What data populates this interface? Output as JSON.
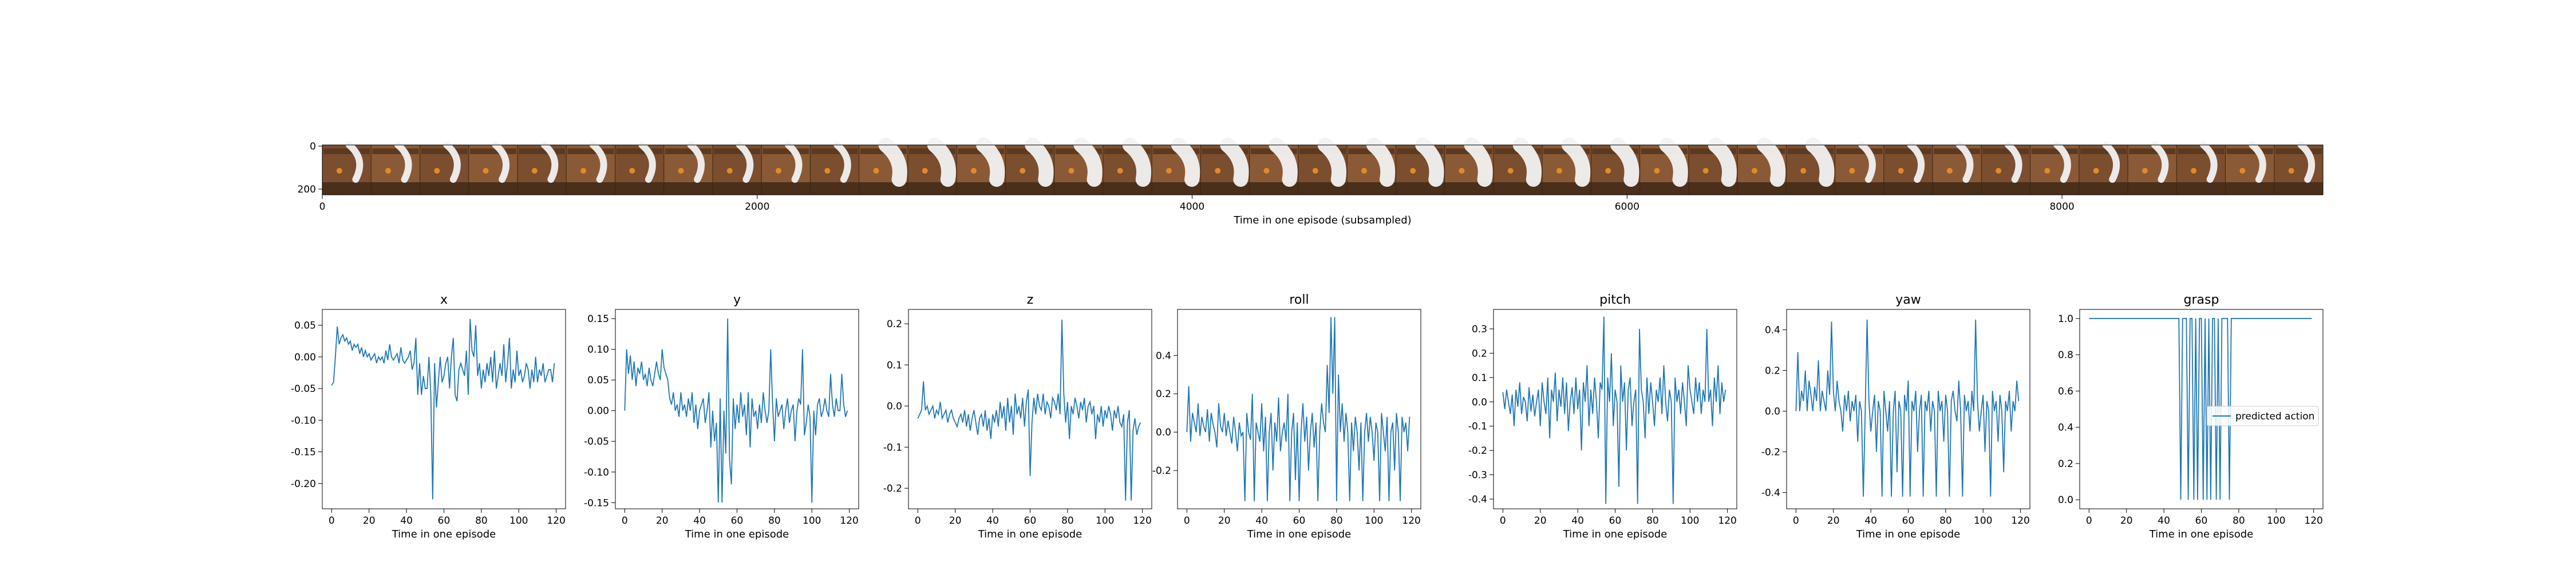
{
  "filmstrip": {
    "xlabel": "Time in one episode (subsampled)",
    "x_ticks": [
      0,
      2000,
      4000,
      6000,
      8000
    ],
    "y_ticks": [
      0,
      200
    ],
    "xlim": [
      0,
      9200
    ],
    "frame_count": 41
  },
  "chart_data": [
    {
      "type": "line",
      "title": "x",
      "xlabel": "Time in one episode",
      "xlim": [
        -5,
        125
      ],
      "ylim": [
        -0.24,
        0.075
      ],
      "x_ticks": [
        0,
        20,
        40,
        60,
        80,
        100,
        120
      ],
      "y_ticks": [
        0.05,
        0.0,
        -0.05,
        -0.1,
        -0.15,
        -0.2
      ],
      "y_tick_labels": [
        "0.05",
        "0.00",
        "-0.05",
        "-0.10",
        "-0.15",
        "-0.20"
      ],
      "color": "#1f77b4",
      "series": [
        {
          "values": [
            -0.045,
            -0.04,
            0.0,
            0.048,
            0.02,
            0.03,
            0.035,
            0.025,
            0.03,
            0.02,
            0.025,
            0.01,
            0.02,
            0.015,
            0.02,
            0.005,
            0.015,
            0.0,
            0.01,
            0.0,
            0.005,
            -0.005,
            0.0,
            0.005,
            -0.01,
            0.0,
            -0.005,
            0.0,
            -0.01,
            0.01,
            -0.005,
            0.02,
            0.0,
            -0.005,
            0.0,
            0.005,
            -0.01,
            0.015,
            -0.005,
            -0.01,
            -0.005,
            0.0,
            0.01,
            -0.02,
            -0.01,
            0.03,
            -0.06,
            -0.01,
            -0.06,
            -0.03,
            -0.05,
            -0.05,
            0.0,
            -0.06,
            -0.225,
            -0.01,
            -0.08,
            -0.04,
            0.0,
            -0.04,
            -0.03,
            -0.01,
            0.0,
            -0.05,
            0.0,
            0.03,
            -0.06,
            -0.07,
            -0.02,
            -0.01,
            -0.02,
            -0.03,
            0.01,
            -0.06,
            0.06,
            0.01,
            0.0,
            0.05,
            -0.03,
            -0.01,
            -0.05,
            -0.02,
            -0.04,
            -0.01,
            -0.03,
            0.0,
            -0.04,
            0.01,
            -0.05,
            -0.03,
            -0.01,
            -0.03,
            0.02,
            -0.04,
            -0.01,
            0.03,
            -0.05,
            -0.02,
            -0.04,
            0.01,
            -0.03,
            -0.02,
            -0.04,
            -0.03,
            -0.01,
            -0.02,
            -0.05,
            -0.02,
            -0.04,
            0.0,
            -0.04,
            -0.02,
            -0.03,
            -0.01,
            -0.04,
            -0.03,
            -0.02,
            -0.02,
            -0.04,
            -0.01
          ]
        }
      ]
    },
    {
      "type": "line",
      "title": "y",
      "xlabel": "Time in one episode",
      "xlim": [
        -5,
        125
      ],
      "ylim": [
        -0.16,
        0.165
      ],
      "x_ticks": [
        0,
        20,
        40,
        60,
        80,
        100,
        120
      ],
      "y_ticks": [
        0.15,
        0.1,
        0.05,
        0.0,
        -0.05,
        -0.1,
        -0.15
      ],
      "y_tick_labels": [
        "0.15",
        "0.10",
        "0.05",
        "0.00",
        "-0.05",
        "-0.10",
        "-0.15"
      ],
      "color": "#1f77b4",
      "series": [
        {
          "values": [
            0.0,
            0.1,
            0.06,
            0.09,
            0.05,
            0.08,
            0.04,
            0.07,
            0.06,
            0.08,
            0.05,
            0.06,
            0.04,
            0.07,
            0.05,
            0.04,
            0.06,
            0.08,
            0.06,
            0.05,
            0.1,
            0.07,
            0.06,
            0.05,
            0.02,
            0.01,
            0.03,
            0.0,
            0.01,
            -0.01,
            0.03,
            0.0,
            0.01,
            -0.01,
            0.02,
            0.0,
            0.03,
            -0.02,
            0.01,
            -0.03,
            0.0,
            0.01,
            0.02,
            -0.02,
            0.0,
            0.03,
            -0.06,
            0.0,
            -0.05,
            -0.02,
            -0.15,
            0.02,
            -0.15,
            0.0,
            -0.07,
            0.15,
            -0.08,
            -0.12,
            0.02,
            -0.03,
            0.01,
            -0.02,
            0.03,
            -0.01,
            0.01,
            -0.04,
            0.03,
            -0.06,
            0.02,
            -0.01,
            0.0,
            -0.03,
            0.01,
            -0.02,
            0.03,
            0.0,
            -0.02,
            0.0,
            0.1,
            0.01,
            -0.05,
            0.02,
            -0.01,
            0.0,
            0.01,
            -0.03,
            0.0,
            0.02,
            -0.02,
            0.0,
            0.01,
            -0.05,
            0.0,
            0.02,
            0.01,
            0.1,
            -0.04,
            -0.02,
            0.01,
            -0.01,
            -0.15,
            0.0,
            -0.04,
            0.01,
            0.02,
            -0.01,
            0.0,
            0.02,
            0.0,
            -0.01,
            0.06,
            0.01,
            -0.01,
            0.02,
            0.0,
            0.0,
            0.06,
            0.01,
            -0.01,
            0.0
          ]
        }
      ]
    },
    {
      "type": "line",
      "title": "z",
      "xlabel": "Time in one episode",
      "xlim": [
        -5,
        125
      ],
      "ylim": [
        -0.25,
        0.235
      ],
      "x_ticks": [
        0,
        20,
        40,
        60,
        80,
        100,
        120
      ],
      "y_ticks": [
        0.2,
        0.1,
        0.0,
        -0.1,
        -0.2
      ],
      "y_tick_labels": [
        "0.2",
        "0.1",
        "0.0",
        "-0.1",
        "-0.2"
      ],
      "color": "#1f77b4",
      "series": [
        {
          "values": [
            -0.03,
            -0.02,
            -0.01,
            0.06,
            -0.01,
            0.0,
            -0.02,
            -0.01,
            0.0,
            -0.03,
            -0.01,
            -0.02,
            0.01,
            -0.03,
            -0.02,
            -0.01,
            -0.04,
            -0.02,
            -0.01,
            -0.03,
            -0.04,
            -0.05,
            -0.03,
            -0.02,
            -0.04,
            -0.01,
            -0.05,
            -0.02,
            -0.06,
            -0.03,
            -0.01,
            -0.04,
            -0.07,
            -0.03,
            -0.02,
            -0.05,
            -0.01,
            -0.06,
            -0.03,
            -0.08,
            -0.02,
            -0.04,
            -0.01,
            -0.05,
            0.01,
            -0.03,
            0.0,
            -0.06,
            0.02,
            -0.04,
            0.0,
            -0.07,
            0.03,
            -0.02,
            0.0,
            -0.03,
            0.02,
            -0.05,
            0.01,
            0.04,
            -0.17,
            -0.04,
            0.02,
            -0.02,
            0.03,
            0.0,
            -0.01,
            0.03,
            -0.02,
            0.01,
            0.0,
            -0.03,
            0.02,
            0.01,
            -0.01,
            0.03,
            -0.02,
            0.21,
            0.03,
            -0.04,
            0.01,
            -0.08,
            0.0,
            -0.02,
            0.02,
            0.0,
            -0.03,
            0.01,
            -0.01,
            0.02,
            -0.04,
            0.0,
            0.01,
            -0.02,
            0.0,
            -0.08,
            -0.02,
            -0.04,
            0.0,
            -0.05,
            -0.01,
            -0.03,
            0.0,
            -0.02,
            -0.06,
            -0.01,
            -0.03,
            0.0,
            -0.04,
            -0.05,
            -0.02,
            -0.23,
            -0.04,
            -0.01,
            -0.23,
            -0.06,
            -0.03,
            -0.07,
            -0.05,
            -0.04
          ]
        }
      ]
    },
    {
      "type": "line",
      "title": "roll",
      "xlabel": "Time in one episode",
      "xlim": [
        -5,
        125
      ],
      "ylim": [
        -0.4,
        0.64
      ],
      "x_ticks": [
        0,
        20,
        40,
        60,
        80,
        100,
        120
      ],
      "y_ticks": [
        0.4,
        0.2,
        0.0,
        -0.2
      ],
      "y_tick_labels": [
        "0.4",
        "0.2",
        "0.0",
        "-0.2"
      ],
      "color": "#1f77b4",
      "series": [
        {
          "values": [
            0.0,
            0.24,
            -0.05,
            0.1,
            0.05,
            0.0,
            0.15,
            -0.02,
            0.08,
            0.03,
            0.0,
            0.12,
            -0.05,
            0.1,
            0.04,
            0.0,
            -0.08,
            0.15,
            0.03,
            0.0,
            0.1,
            -0.02,
            0.06,
            0.0,
            -0.06,
            0.08,
            0.0,
            -0.1,
            0.05,
            -0.02,
            0.0,
            -0.36,
            0.1,
            0.0,
            -0.04,
            0.2,
            -0.36,
            0.05,
            0.0,
            -0.05,
            0.15,
            -0.1,
            0.08,
            -0.36,
            0.0,
            0.1,
            -0.2,
            0.05,
            -0.05,
            0.18,
            -0.1,
            0.0,
            0.05,
            -0.05,
            0.2,
            -0.36,
            0.0,
            0.1,
            -0.25,
            0.05,
            -0.36,
            0.0,
            0.15,
            -0.05,
            0.08,
            -0.2,
            0.0,
            0.1,
            -0.08,
            0.05,
            -0.36,
            0.0,
            0.15,
            0.05,
            0.0,
            0.35,
            0.1,
            0.6,
            0.2,
            0.6,
            -0.36,
            0.3,
            0.0,
            0.15,
            -0.05,
            0.1,
            0.0,
            -0.36,
            0.05,
            -0.1,
            0.08,
            0.0,
            -0.2,
            0.05,
            -0.36,
            0.0,
            0.1,
            -0.05,
            0.08,
            0.0,
            -0.15,
            0.05,
            0.0,
            -0.36,
            0.1,
            0.0,
            -0.1,
            0.08,
            -0.36,
            0.0,
            0.05,
            -0.2,
            0.1,
            0.0,
            -0.36,
            0.08,
            0.0,
            0.05,
            -0.1,
            0.08
          ]
        }
      ]
    },
    {
      "type": "line",
      "title": "pitch",
      "xlabel": "Time in one episode",
      "xlim": [
        -5,
        125
      ],
      "ylim": [
        -0.44,
        0.38
      ],
      "x_ticks": [
        0,
        20,
        40,
        60,
        80,
        100,
        120
      ],
      "y_ticks": [
        0.3,
        0.2,
        0.1,
        0.0,
        -0.1,
        -0.2,
        -0.3,
        -0.4
      ],
      "y_tick_labels": [
        "0.3",
        "0.2",
        "0.1",
        "0.0",
        "-0.1",
        "-0.2",
        "-0.3",
        "-0.4"
      ],
      "color": "#1f77b4",
      "series": [
        {
          "values": [
            0.04,
            -0.03,
            0.05,
            0.0,
            -0.05,
            0.03,
            -0.1,
            0.05,
            -0.02,
            0.08,
            -0.05,
            0.02,
            0.0,
            -0.08,
            0.06,
            -0.04,
            0.03,
            -0.06,
            0.0,
            0.05,
            -0.1,
            0.08,
            0.0,
            -0.05,
            0.1,
            -0.15,
            0.05,
            0.0,
            0.12,
            -0.08,
            0.05,
            -0.02,
            0.1,
            -0.05,
            0.08,
            -0.12,
            0.0,
            0.06,
            -0.05,
            0.1,
            -0.03,
            0.05,
            -0.2,
            0.08,
            0.0,
            0.15,
            -0.1,
            0.05,
            -0.05,
            0.1,
            0.0,
            -0.15,
            0.08,
            0.05,
            0.35,
            -0.42,
            0.1,
            0.0,
            0.2,
            -0.1,
            0.05,
            0.0,
            -0.35,
            0.15,
            0.0,
            0.08,
            -0.2,
            0.05,
            0.1,
            -0.1,
            0.0,
            0.05,
            -0.42,
            0.3,
            0.05,
            0.0,
            -0.15,
            0.1,
            -0.05,
            0.08,
            0.0,
            -0.1,
            0.05,
            0.0,
            0.1,
            -0.05,
            0.15,
            0.0,
            -0.08,
            0.05,
            0.0,
            -0.42,
            0.1,
            0.0,
            0.05,
            -0.05,
            0.08,
            0.0,
            -0.1,
            0.15,
            0.05,
            0.0,
            -0.05,
            0.1,
            0.0,
            0.08,
            -0.05,
            0.05,
            0.0,
            0.3,
            0.0,
            0.05,
            -0.1,
            0.1,
            0.0,
            0.15,
            -0.05,
            0.08,
            0.0,
            0.05
          ]
        }
      ]
    },
    {
      "type": "line",
      "title": "yaw",
      "xlabel": "Time in one episode",
      "xlim": [
        -5,
        125
      ],
      "ylim": [
        -0.48,
        0.5
      ],
      "x_ticks": [
        0,
        20,
        40,
        60,
        80,
        100,
        120
      ],
      "y_ticks": [
        0.4,
        0.2,
        0.0,
        -0.2,
        -0.4
      ],
      "y_tick_labels": [
        "0.4",
        "0.2",
        "0.0",
        "-0.2",
        "-0.4"
      ],
      "color": "#1f77b4",
      "series": [
        {
          "values": [
            0.0,
            0.29,
            0.0,
            0.1,
            0.05,
            0.2,
            0.0,
            0.15,
            0.08,
            0.0,
            0.12,
            0.05,
            0.25,
            0.0,
            0.1,
            0.05,
            0.0,
            0.2,
            0.08,
            0.44,
            0.1,
            0.0,
            0.15,
            0.05,
            0.0,
            -0.1,
            0.08,
            0.0,
            0.1,
            -0.05,
            0.05,
            0.0,
            0.08,
            -0.15,
            0.05,
            0.0,
            -0.42,
            0.0,
            0.45,
            0.05,
            -0.1,
            0.0,
            0.08,
            -0.2,
            0.05,
            0.0,
            -0.42,
            0.1,
            0.0,
            -0.1,
            0.05,
            -0.42,
            0.0,
            0.1,
            -0.3,
            0.05,
            0.0,
            -0.42,
            0.08,
            0.0,
            0.15,
            -0.42,
            0.05,
            0.0,
            0.1,
            -0.2,
            0.0,
            0.08,
            -0.42,
            0.05,
            0.0,
            0.1,
            -0.1,
            0.05,
            0.0,
            -0.42,
            0.1,
            0.0,
            0.05,
            -0.15,
            0.08,
            0.0,
            -0.42,
            0.05,
            0.1,
            0.0,
            -0.05,
            0.15,
            0.0,
            -0.42,
            0.08,
            0.0,
            0.05,
            -0.1,
            0.1,
            0.0,
            0.45,
            0.05,
            -0.1,
            0.0,
            0.08,
            -0.2,
            0.05,
            0.0,
            -0.42,
            0.1,
            0.0,
            0.05,
            -0.15,
            0.08,
            0.0,
            -0.3,
            0.05,
            0.0,
            0.1,
            -0.1,
            0.05,
            0.0,
            0.15,
            0.05
          ]
        }
      ]
    },
    {
      "type": "line",
      "title": "grasp",
      "xlabel": "Time in one episode",
      "xlim": [
        -5,
        125
      ],
      "ylim": [
        -0.05,
        1.05
      ],
      "x_ticks": [
        0,
        20,
        40,
        60,
        80,
        100,
        120
      ],
      "y_ticks": [
        1.0,
        0.8,
        0.6,
        0.4,
        0.2,
        0.0
      ],
      "y_tick_labels": [
        "1.0",
        "0.8",
        "0.6",
        "0.4",
        "0.2",
        "0.0"
      ],
      "color": "#1f77b4",
      "legend": "right",
      "series": [
        {
          "name": "predicted action",
          "values": [
            1,
            1,
            1,
            1,
            1,
            1,
            1,
            1,
            1,
            1,
            1,
            1,
            1,
            1,
            1,
            1,
            1,
            1,
            1,
            1,
            1,
            1,
            1,
            1,
            1,
            1,
            1,
            1,
            1,
            1,
            1,
            1,
            1,
            1,
            1,
            1,
            1,
            1,
            1,
            1,
            1,
            1,
            1,
            1,
            1,
            1,
            1,
            1,
            1,
            0,
            1,
            1,
            1,
            0,
            1,
            1,
            0,
            1,
            0,
            1,
            1,
            0,
            1,
            0,
            1,
            0,
            1,
            1,
            0,
            1,
            0,
            1,
            1,
            1,
            1,
            0,
            1,
            1,
            1,
            1,
            1,
            1,
            1,
            1,
            1,
            1,
            1,
            1,
            1,
            1,
            1,
            1,
            1,
            1,
            1,
            1,
            1,
            1,
            1,
            1,
            1,
            1,
            1,
            1,
            1,
            1,
            1,
            1,
            1,
            1,
            1,
            1,
            1,
            1,
            1,
            1,
            1,
            1,
            1,
            1
          ]
        }
      ]
    }
  ]
}
